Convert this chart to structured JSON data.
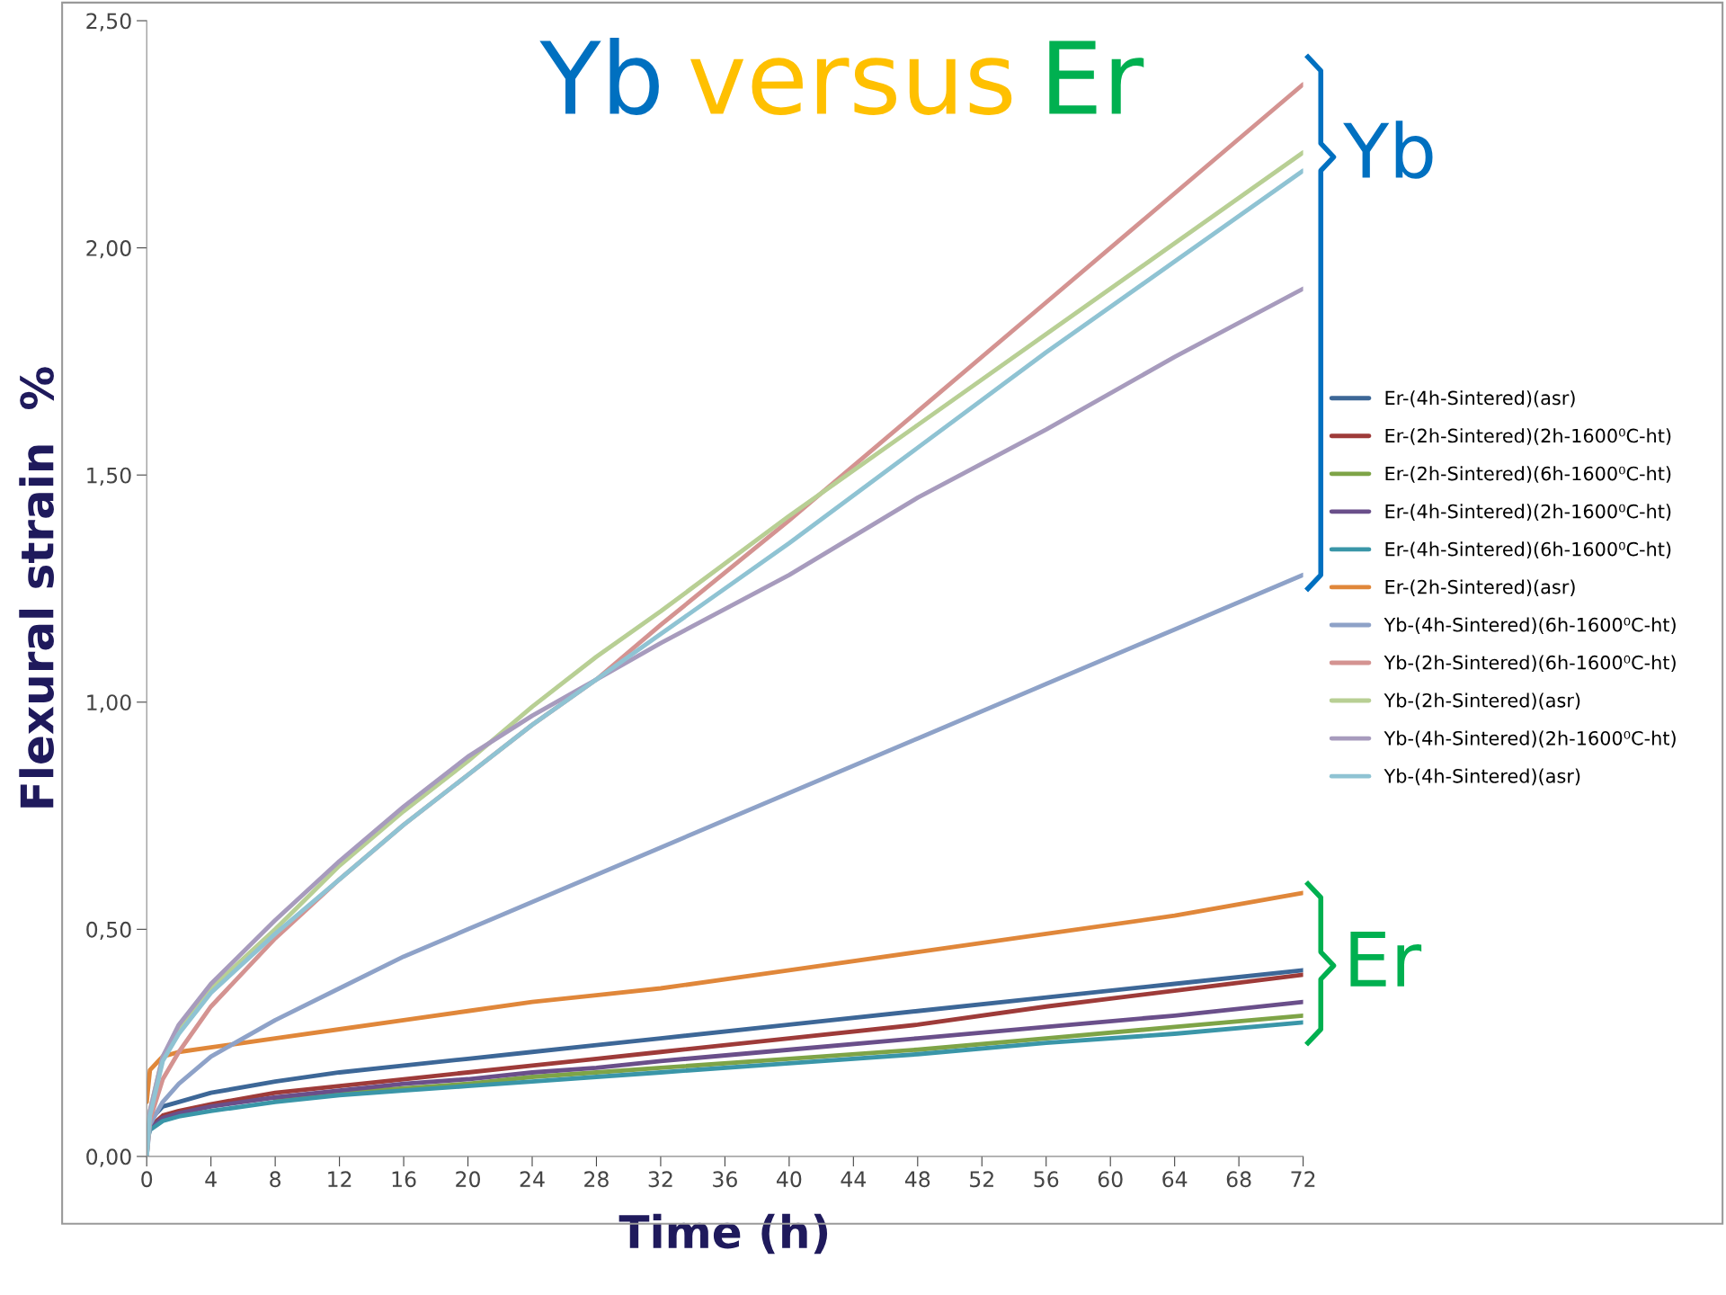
{
  "chart_data": {
    "type": "line",
    "title": "Yb versus Er",
    "xlabel": "Time (h)",
    "ylabel": "Flexural strain  %",
    "x": [
      0,
      0.2,
      1,
      2,
      4,
      8,
      12,
      16,
      20,
      24,
      28,
      32,
      40,
      48,
      56,
      64,
      72
    ],
    "series": [
      {
        "name": "Er-(4h-Sintered)(asr)",
        "color": "#3d6797",
        "values": [
          0.03,
          0.08,
          0.11,
          0.12,
          0.14,
          0.165,
          0.185,
          0.2,
          0.215,
          0.23,
          0.245,
          0.26,
          0.29,
          0.32,
          0.35,
          0.38,
          0.41
        ]
      },
      {
        "name": "Er-(2h-Sintered)(2h-1600⁰C-ht)",
        "color": "#9e3b39",
        "values": [
          0.03,
          0.065,
          0.09,
          0.1,
          0.115,
          0.14,
          0.155,
          0.17,
          0.185,
          0.2,
          0.215,
          0.23,
          0.26,
          0.29,
          0.33,
          0.365,
          0.4
        ]
      },
      {
        "name": "Er-(2h-Sintered)(6h-1600⁰C-ht)",
        "color": "#7ea447",
        "values": [
          null,
          null,
          null,
          null,
          null,
          0.125,
          0.14,
          0.15,
          0.16,
          0.175,
          0.185,
          0.195,
          0.215,
          0.235,
          0.26,
          0.285,
          0.31
        ]
      },
      {
        "name": "Er-(4h-Sintered)(2h-1600⁰C-ht)",
        "color": "#6a4f8a",
        "values": [
          0.03,
          0.062,
          0.085,
          0.095,
          0.11,
          0.13,
          0.145,
          0.16,
          0.17,
          0.185,
          0.195,
          0.21,
          0.235,
          0.26,
          0.285,
          0.31,
          0.34
        ]
      },
      {
        "name": "Er-(4h-Sintered)(6h-1600⁰C-ht)",
        "color": "#3a96a8",
        "values": [
          0.03,
          0.058,
          0.078,
          0.088,
          0.1,
          0.12,
          0.135,
          0.145,
          0.155,
          0.165,
          0.175,
          0.185,
          0.205,
          0.225,
          0.25,
          0.27,
          0.295
        ]
      },
      {
        "name": "Er-(2h-Sintered)(asr)",
        "color": "#e0873a",
        "values": [
          0.12,
          0.19,
          0.22,
          0.23,
          0.24,
          0.26,
          0.28,
          0.3,
          0.32,
          0.34,
          0.355,
          0.37,
          0.41,
          0.45,
          0.49,
          0.53,
          0.58
        ]
      },
      {
        "name": "Yb-(4h-Sintered)(6h-1600⁰C-ht)",
        "color": "#8ea2c8",
        "values": [
          0,
          0.07,
          0.12,
          0.16,
          0.22,
          0.3,
          0.37,
          0.44,
          0.5,
          0.56,
          0.62,
          0.68,
          0.8,
          0.92,
          1.04,
          1.16,
          1.28
        ]
      },
      {
        "name": "Yb-(2h-Sintered)(6h-1600⁰C-ht)",
        "color": "#d49391",
        "values": [
          0,
          0.08,
          0.17,
          0.23,
          0.33,
          0.48,
          0.61,
          0.73,
          0.84,
          0.95,
          1.05,
          1.17,
          1.4,
          1.64,
          1.88,
          2.12,
          2.36
        ]
      },
      {
        "name": "Yb-(2h-Sintered)(asr)",
        "color": "#b8cf94",
        "values": [
          0,
          0.1,
          0.22,
          0.28,
          0.37,
          0.5,
          0.64,
          0.76,
          0.87,
          0.99,
          1.1,
          1.2,
          1.41,
          1.61,
          1.81,
          2.01,
          2.21
        ]
      },
      {
        "name": "Yb-(4h-Sintered)(2h-1600⁰C-ht)",
        "color": "#a79bbd",
        "values": [
          0,
          0.1,
          0.22,
          0.29,
          0.38,
          0.52,
          0.65,
          0.77,
          0.88,
          0.97,
          1.05,
          1.13,
          1.28,
          1.45,
          1.6,
          1.76,
          1.91
        ]
      },
      {
        "name": "Yb-(4h-Sintered)(asr)",
        "color": "#8fc3d3",
        "values": [
          0,
          0.09,
          0.21,
          0.27,
          0.36,
          0.49,
          0.61,
          0.73,
          0.84,
          0.95,
          1.05,
          1.15,
          1.35,
          1.56,
          1.77,
          1.97,
          2.17
        ]
      }
    ],
    "xlim": [
      0,
      72
    ],
    "xticks": [
      0,
      4,
      8,
      12,
      16,
      20,
      24,
      28,
      32,
      36,
      40,
      44,
      48,
      52,
      56,
      60,
      64,
      68,
      72
    ],
    "ylim": [
      0,
      2.5
    ],
    "yticks": [
      {
        "value": 0,
        "label": "0,00"
      },
      {
        "value": 0.5,
        "label": "0,50"
      },
      {
        "value": 1,
        "label": "1,00"
      },
      {
        "value": 1.5,
        "label": "1,50"
      },
      {
        "value": 2,
        "label": "2,00"
      },
      {
        "value": 2.5,
        "label": "2,50"
      }
    ],
    "annotations": [
      "Yb",
      "Er"
    ],
    "legend": "right",
    "grid": false,
    "marker": "none",
    "line_style": "solid"
  }
}
